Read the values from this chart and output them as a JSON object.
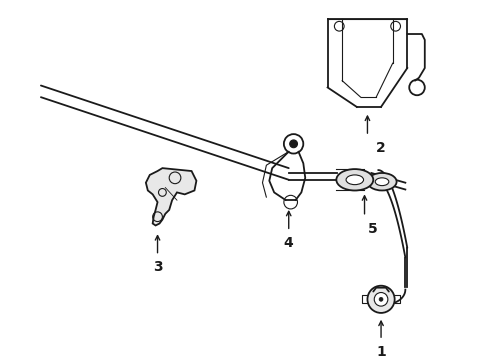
{
  "bg_color": "#ffffff",
  "line_color": "#1a1a1a",
  "fig_width": 4.9,
  "fig_height": 3.6,
  "dpi": 100,
  "label_fontsize": 10,
  "lw_thin": 0.8,
  "lw_med": 1.3,
  "lw_thick": 1.8
}
